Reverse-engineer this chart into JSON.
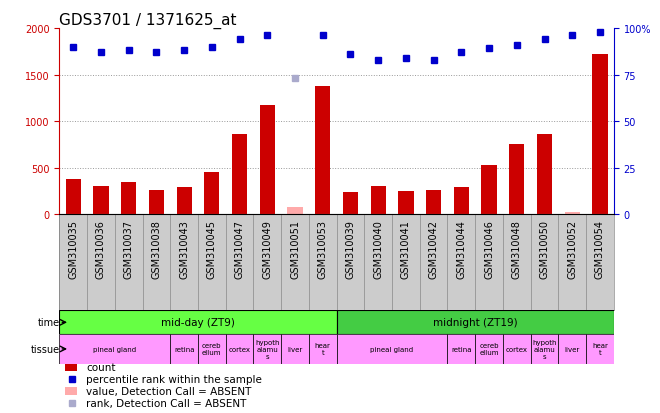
{
  "title": "GDS3701 / 1371625_at",
  "samples": [
    "GSM310035",
    "GSM310036",
    "GSM310037",
    "GSM310038",
    "GSM310043",
    "GSM310045",
    "GSM310047",
    "GSM310049",
    "GSM310051",
    "GSM310053",
    "GSM310039",
    "GSM310040",
    "GSM310041",
    "GSM310042",
    "GSM310044",
    "GSM310046",
    "GSM310048",
    "GSM310050",
    "GSM310052",
    "GSM310054"
  ],
  "counts": [
    380,
    300,
    345,
    265,
    295,
    460,
    860,
    1175,
    75,
    1375,
    245,
    310,
    255,
    265,
    295,
    530,
    760,
    860,
    30,
    1720
  ],
  "counts_absent": [
    false,
    false,
    false,
    false,
    false,
    false,
    false,
    false,
    true,
    false,
    false,
    false,
    false,
    false,
    false,
    false,
    false,
    false,
    true,
    false
  ],
  "percentile_ranks": [
    90,
    87,
    88,
    87,
    88,
    90,
    94,
    96,
    73,
    96,
    86,
    83,
    84,
    83,
    87,
    89,
    91,
    94,
    96,
    98
  ],
  "rank_absent": [
    false,
    false,
    false,
    false,
    false,
    false,
    false,
    false,
    true,
    false,
    false,
    false,
    false,
    false,
    false,
    false,
    false,
    false,
    false,
    false
  ],
  "ylim_left": [
    0,
    2000
  ],
  "ylim_right": [
    0,
    100
  ],
  "yticks_left": [
    0,
    500,
    1000,
    1500,
    2000
  ],
  "yticks_right": [
    0,
    25,
    50,
    75,
    100
  ],
  "time_groups": [
    {
      "label": "mid-day (ZT9)",
      "start": 0,
      "end": 10,
      "color": "#66ff44"
    },
    {
      "label": "midnight (ZT19)",
      "start": 10,
      "end": 20,
      "color": "#44cc44"
    }
  ],
  "tissue_groups": [
    {
      "label": "pineal gland",
      "start": 0,
      "end": 4
    },
    {
      "label": "retina",
      "start": 4,
      "end": 5
    },
    {
      "label": "cereb\nellum",
      "start": 5,
      "end": 6
    },
    {
      "label": "cortex",
      "start": 6,
      "end": 7
    },
    {
      "label": "hypoth\nalamu\ns",
      "start": 7,
      "end": 8
    },
    {
      "label": "liver",
      "start": 8,
      "end": 9
    },
    {
      "label": "hear\nt",
      "start": 9,
      "end": 10
    },
    {
      "label": "pineal gland",
      "start": 10,
      "end": 14
    },
    {
      "label": "retina",
      "start": 14,
      "end": 15
    },
    {
      "label": "cereb\nellum",
      "start": 15,
      "end": 16
    },
    {
      "label": "cortex",
      "start": 16,
      "end": 17
    },
    {
      "label": "hypoth\nalamu\ns",
      "start": 17,
      "end": 18
    },
    {
      "label": "liver",
      "start": 18,
      "end": 19
    },
    {
      "label": "hear\nt",
      "start": 19,
      "end": 20
    }
  ],
  "tissue_color": "#ff99ff",
  "bar_color": "#cc0000",
  "bar_absent_color": "#ffaaaa",
  "dot_color": "#0000cc",
  "dot_absent_color": "#aaaacc",
  "grid_color": "#999999",
  "bg_color": "#ffffff",
  "left_axis_color": "#cc0000",
  "right_axis_color": "#0000cc",
  "xlabel_bg": "#cccccc",
  "title_fontsize": 11,
  "tick_fontsize": 7,
  "label_fontsize": 8,
  "legend_items": [
    {
      "color": "#cc0000",
      "type": "rect",
      "label": "count"
    },
    {
      "color": "#0000cc",
      "type": "square",
      "label": "percentile rank within the sample"
    },
    {
      "color": "#ffaaaa",
      "type": "rect",
      "label": "value, Detection Call = ABSENT"
    },
    {
      "color": "#aaaacc",
      "type": "square",
      "label": "rank, Detection Call = ABSENT"
    }
  ]
}
